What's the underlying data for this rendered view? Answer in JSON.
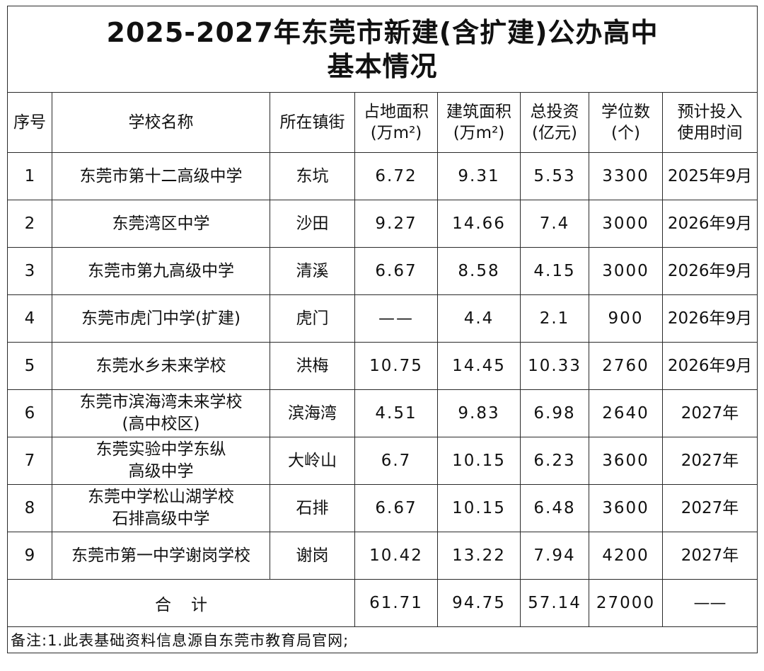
{
  "title": {
    "line1": "2025-2027年东莞市新建(含扩建)公办高中",
    "line2": "基本情况"
  },
  "headers": [
    {
      "l1": "序号",
      "l2": ""
    },
    {
      "l1": "学校名称",
      "l2": ""
    },
    {
      "l1": "所在镇街",
      "l2": ""
    },
    {
      "l1": "占地面积",
      "l2": "(万m²)"
    },
    {
      "l1": "建筑面积",
      "l2": "(万m²)"
    },
    {
      "l1": "总投资",
      "l2": "(亿元)"
    },
    {
      "l1": "学位数",
      "l2": "(个)"
    },
    {
      "l1": "预计投入",
      "l2": "使用时间"
    }
  ],
  "rows": [
    {
      "no": "1",
      "name1": "东莞市第十二高级中学",
      "name2": "",
      "town": "东坑",
      "land": "6.72",
      "build": "9.31",
      "invest": "5.53",
      "seats": "3300",
      "time": "2025年9月"
    },
    {
      "no": "2",
      "name1": "东莞湾区中学",
      "name2": "",
      "town": "沙田",
      "land": "9.27",
      "build": "14.66",
      "invest": "7.4",
      "seats": "3000",
      "time": "2026年9月"
    },
    {
      "no": "3",
      "name1": "东莞市第九高级中学",
      "name2": "",
      "town": "清溪",
      "land": "6.67",
      "build": "8.58",
      "invest": "4.15",
      "seats": "3000",
      "time": "2026年9月"
    },
    {
      "no": "4",
      "name1": "东莞市虎门中学(扩建)",
      "name2": "",
      "town": "虎门",
      "land": "——",
      "build": "4.4",
      "invest": "2.1",
      "seats": "900",
      "time": "2026年9月"
    },
    {
      "no": "5",
      "name1": "东莞水乡未来学校",
      "name2": "",
      "town": "洪梅",
      "land": "10.75",
      "build": "14.45",
      "invest": "10.33",
      "seats": "2760",
      "time": "2026年9月"
    },
    {
      "no": "6",
      "name1": "东莞市滨海湾未来学校",
      "name2": "(高中校区)",
      "town": "滨海湾",
      "land": "4.51",
      "build": "9.83",
      "invest": "6.98",
      "seats": "2640",
      "time": "2027年"
    },
    {
      "no": "7",
      "name1": "东莞实验中学东纵",
      "name2": "高级中学",
      "town": "大岭山",
      "land": "6.7",
      "build": "10.15",
      "invest": "6.23",
      "seats": "3600",
      "time": "2027年"
    },
    {
      "no": "8",
      "name1": "东莞中学松山湖学校",
      "name2": "石排高级中学",
      "town": "石排",
      "land": "6.67",
      "build": "10.15",
      "invest": "6.48",
      "seats": "3600",
      "time": "2027年"
    },
    {
      "no": "9",
      "name1": "东莞市第一中学谢岗学校",
      "name2": "",
      "town": "谢岗",
      "land": "10.42",
      "build": "13.22",
      "invest": "7.94",
      "seats": "4200",
      "time": "2027年"
    }
  ],
  "total": {
    "label": "合计",
    "land": "61.71",
    "build": "94.75",
    "invest": "57.14",
    "seats": "27000",
    "time": "——"
  },
  "note": "备注:1.此表基础资料信息源自东莞市教育局官网;"
}
